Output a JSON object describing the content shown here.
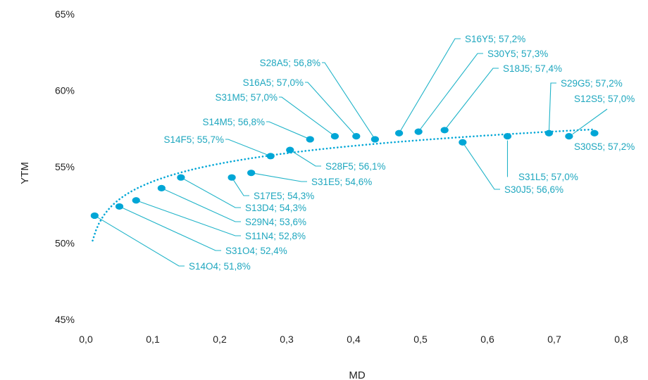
{
  "colors": {
    "accent": "#00a6d6",
    "leader": "#1fb3c8",
    "label": "#1fa7bf",
    "text": "#222222"
  },
  "chart_data": {
    "type": "scatter",
    "title": "",
    "xlabel": "MD",
    "ylabel": "YTM",
    "xlim": [
      0,
      0.8
    ],
    "ylim": [
      45,
      65
    ],
    "xticks": [
      0,
      0.1,
      0.2,
      0.3,
      0.4,
      0.5,
      0.6,
      0.7,
      0.8
    ],
    "xtick_labels": [
      "0,0",
      "0,1",
      "0,2",
      "0,3",
      "0,4",
      "0,5",
      "0,6",
      "0,7",
      "0,8"
    ],
    "yticks": [
      45,
      50,
      55,
      60,
      65
    ],
    "ytick_labels": [
      "45%",
      "50%",
      "55%",
      "60%",
      "65%"
    ],
    "grid": false,
    "legend": "none",
    "trendline": {
      "style": "dotted",
      "type": "logarithmic"
    },
    "points": [
      {
        "x": 0.013,
        "y": 51.8,
        "label": "S14O4; 51,8%"
      },
      {
        "x": 0.05,
        "y": 52.4,
        "label": "S31O4; 52,4%"
      },
      {
        "x": 0.075,
        "y": 52.8,
        "label": "S11N4; 52,8%"
      },
      {
        "x": 0.113,
        "y": 53.6,
        "label": "S29N4; 53,6%"
      },
      {
        "x": 0.142,
        "y": 54.3,
        "label": "S13D4; 54,3%"
      },
      {
        "x": 0.218,
        "y": 54.3,
        "label": "S17E5; 54,3%"
      },
      {
        "x": 0.247,
        "y": 54.6,
        "label": "S31E5; 54,6%"
      },
      {
        "x": 0.276,
        "y": 55.7,
        "label": "S14F5; 55,7%"
      },
      {
        "x": 0.305,
        "y": 56.1,
        "label": "S28F5; 56,1%"
      },
      {
        "x": 0.335,
        "y": 56.8,
        "label": "S14M5; 56,8%"
      },
      {
        "x": 0.372,
        "y": 57.0,
        "label": "S31M5; 57,0%"
      },
      {
        "x": 0.404,
        "y": 57.0,
        "label": "S16A5; 57,0%"
      },
      {
        "x": 0.432,
        "y": 56.8,
        "label": "S28A5; 56,8%"
      },
      {
        "x": 0.468,
        "y": 57.2,
        "label": "S16Y5; 57,2%"
      },
      {
        "x": 0.497,
        "y": 57.3,
        "label": "S30Y5; 57,3%"
      },
      {
        "x": 0.536,
        "y": 57.4,
        "label": "S18J5; 57,4%"
      },
      {
        "x": 0.563,
        "y": 56.6,
        "label": "S30J5; 56,6%"
      },
      {
        "x": 0.63,
        "y": 57.0,
        "label": "S31L5; 57,0%"
      },
      {
        "x": 0.692,
        "y": 57.2,
        "label": "S29G5; 57,2%"
      },
      {
        "x": 0.722,
        "y": 57.0,
        "label": "S12S5; 57,0%"
      },
      {
        "x": 0.76,
        "y": 57.2,
        "label": "S30S5; 57,2%"
      }
    ]
  }
}
